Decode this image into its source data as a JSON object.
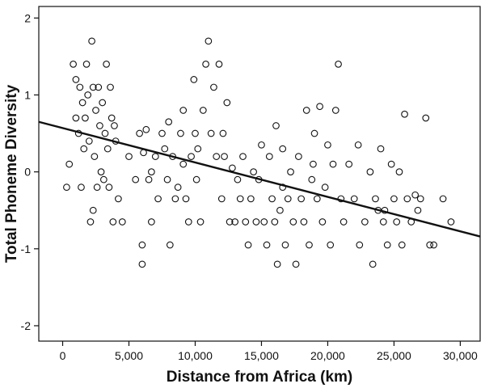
{
  "chart_data": {
    "type": "scatter",
    "title": "",
    "xlabel": "Distance from Africa (km)",
    "ylabel": "Total Phoneme Diversity",
    "xlim": [
      -1800,
      31500
    ],
    "ylim": [
      -2.2,
      2.15
    ],
    "x_ticks": [
      0,
      5000,
      10000,
      15000,
      20000,
      25000,
      30000
    ],
    "x_tick_labels": [
      "0",
      "5,000",
      "10,000",
      "15,000",
      "20,000",
      "25,000",
      "30,000"
    ],
    "y_ticks": [
      2,
      1,
      0,
      -1,
      -2
    ],
    "y_tick_labels": [
      "2",
      "1",
      "0",
      "-1",
      "-2"
    ],
    "grid": false,
    "legend": "none",
    "marker": "open-circle",
    "trend_line": {
      "x": [
        -1800,
        31500
      ],
      "y": [
        0.65,
        -0.84
      ]
    },
    "series": [
      {
        "points": [
          [
            500,
            0.1
          ],
          [
            800,
            1.4
          ],
          [
            1000,
            1.2
          ],
          [
            1000,
            0.7
          ],
          [
            1200,
            0.5
          ],
          [
            1300,
            1.1
          ],
          [
            1400,
            -0.2
          ],
          [
            1500,
            0.9
          ],
          [
            1600,
            0.3
          ],
          [
            1700,
            0.7
          ],
          [
            1800,
            1.4
          ],
          [
            1900,
            1.0
          ],
          [
            2000,
            0.4
          ],
          [
            2100,
            -0.65
          ],
          [
            2200,
            1.7
          ],
          [
            2300,
            1.1
          ],
          [
            2400,
            0.2
          ],
          [
            2500,
            0.8
          ],
          [
            2600,
            -0.2
          ],
          [
            2700,
            1.1
          ],
          [
            2800,
            0.6
          ],
          [
            2900,
            0.0
          ],
          [
            3000,
            0.9
          ],
          [
            3100,
            -0.1
          ],
          [
            3200,
            0.5
          ],
          [
            3300,
            1.4
          ],
          [
            3400,
            0.3
          ],
          [
            3500,
            -0.2
          ],
          [
            3600,
            1.1
          ],
          [
            3700,
            0.7
          ],
          [
            3800,
            -0.65
          ],
          [
            4000,
            0.4
          ],
          [
            4200,
            -0.35
          ],
          [
            4500,
            -0.65
          ],
          [
            5000,
            0.2
          ],
          [
            5500,
            -0.1
          ],
          [
            5800,
            0.5
          ],
          [
            6000,
            -0.95
          ],
          [
            6000,
            -1.2
          ],
          [
            6100,
            0.25
          ],
          [
            6300,
            0.55
          ],
          [
            6500,
            -0.1
          ],
          [
            6700,
            0.0
          ],
          [
            7000,
            0.2
          ],
          [
            7200,
            -0.35
          ],
          [
            7500,
            0.5
          ],
          [
            7700,
            0.3
          ],
          [
            7900,
            -0.1
          ],
          [
            8000,
            0.65
          ],
          [
            8100,
            -0.95
          ],
          [
            8300,
            0.2
          ],
          [
            8500,
            -0.35
          ],
          [
            8700,
            -0.2
          ],
          [
            8900,
            0.5
          ],
          [
            9100,
            0.1
          ],
          [
            9300,
            -0.35
          ],
          [
            9500,
            -0.65
          ],
          [
            9700,
            0.2
          ],
          [
            9900,
            1.2
          ],
          [
            10000,
            0.5
          ],
          [
            10100,
            -0.1
          ],
          [
            10200,
            0.3
          ],
          [
            10400,
            -0.65
          ],
          [
            10600,
            0.8
          ],
          [
            10800,
            1.4
          ],
          [
            11000,
            1.7
          ],
          [
            11200,
            0.5
          ],
          [
            11400,
            1.1
          ],
          [
            11600,
            0.2
          ],
          [
            11800,
            1.4
          ],
          [
            12000,
            -0.35
          ],
          [
            12200,
            0.2
          ],
          [
            12400,
            0.9
          ],
          [
            12600,
            -0.65
          ],
          [
            12800,
            0.05
          ],
          [
            13000,
            -0.65
          ],
          [
            13200,
            -0.1
          ],
          [
            13400,
            -0.35
          ],
          [
            13600,
            0.2
          ],
          [
            13800,
            -0.65
          ],
          [
            14000,
            -0.95
          ],
          [
            14200,
            -0.35
          ],
          [
            14400,
            0.0
          ],
          [
            14600,
            -0.65
          ],
          [
            14800,
            -0.1
          ],
          [
            15000,
            0.35
          ],
          [
            15200,
            -0.65
          ],
          [
            15400,
            -0.95
          ],
          [
            15600,
            0.2
          ],
          [
            15800,
            -0.35
          ],
          [
            16000,
            -0.65
          ],
          [
            16100,
            0.6
          ],
          [
            16200,
            -1.2
          ],
          [
            16400,
            -0.5
          ],
          [
            16600,
            0.3
          ],
          [
            16800,
            -0.95
          ],
          [
            17000,
            -0.35
          ],
          [
            17200,
            0.0
          ],
          [
            17400,
            -0.65
          ],
          [
            17600,
            -1.2
          ],
          [
            17800,
            0.2
          ],
          [
            18000,
            -0.35
          ],
          [
            18200,
            -0.65
          ],
          [
            18400,
            0.8
          ],
          [
            18600,
            -0.95
          ],
          [
            18800,
            -0.1
          ],
          [
            19000,
            0.5
          ],
          [
            19200,
            -0.35
          ],
          [
            19400,
            0.85
          ],
          [
            19600,
            -0.65
          ],
          [
            19800,
            -0.2
          ],
          [
            20000,
            0.35
          ],
          [
            20200,
            -0.95
          ],
          [
            20400,
            0.1
          ],
          [
            20600,
            0.8
          ],
          [
            20800,
            1.4
          ],
          [
            21000,
            -0.35
          ],
          [
            21200,
            -0.65
          ],
          [
            21600,
            0.1
          ],
          [
            22000,
            -0.35
          ],
          [
            22400,
            -0.95
          ],
          [
            22800,
            -0.65
          ],
          [
            23200,
            0.0
          ],
          [
            23400,
            -1.2
          ],
          [
            23600,
            -0.35
          ],
          [
            23800,
            -0.5
          ],
          [
            24000,
            0.3
          ],
          [
            24200,
            -0.65
          ],
          [
            24500,
            -0.95
          ],
          [
            24800,
            0.1
          ],
          [
            25000,
            -0.35
          ],
          [
            25200,
            -0.65
          ],
          [
            25400,
            0.0
          ],
          [
            25600,
            -0.95
          ],
          [
            25800,
            0.75
          ],
          [
            26000,
            -0.35
          ],
          [
            26300,
            -0.65
          ],
          [
            26600,
            -0.3
          ],
          [
            27000,
            -0.35
          ],
          [
            27400,
            0.7
          ],
          [
            27700,
            -0.95
          ],
          [
            28000,
            -0.95
          ],
          [
            28700,
            -0.35
          ],
          [
            29300,
            -0.65
          ],
          [
            300,
            -0.2
          ],
          [
            2300,
            -0.5
          ],
          [
            3900,
            0.6
          ],
          [
            6700,
            -0.65
          ],
          [
            9100,
            0.8
          ],
          [
            12100,
            0.5
          ],
          [
            16600,
            -0.2
          ],
          [
            18900,
            0.1
          ],
          [
            22300,
            0.35
          ],
          [
            24300,
            -0.5
          ],
          [
            26800,
            -0.5
          ]
        ]
      }
    ]
  }
}
